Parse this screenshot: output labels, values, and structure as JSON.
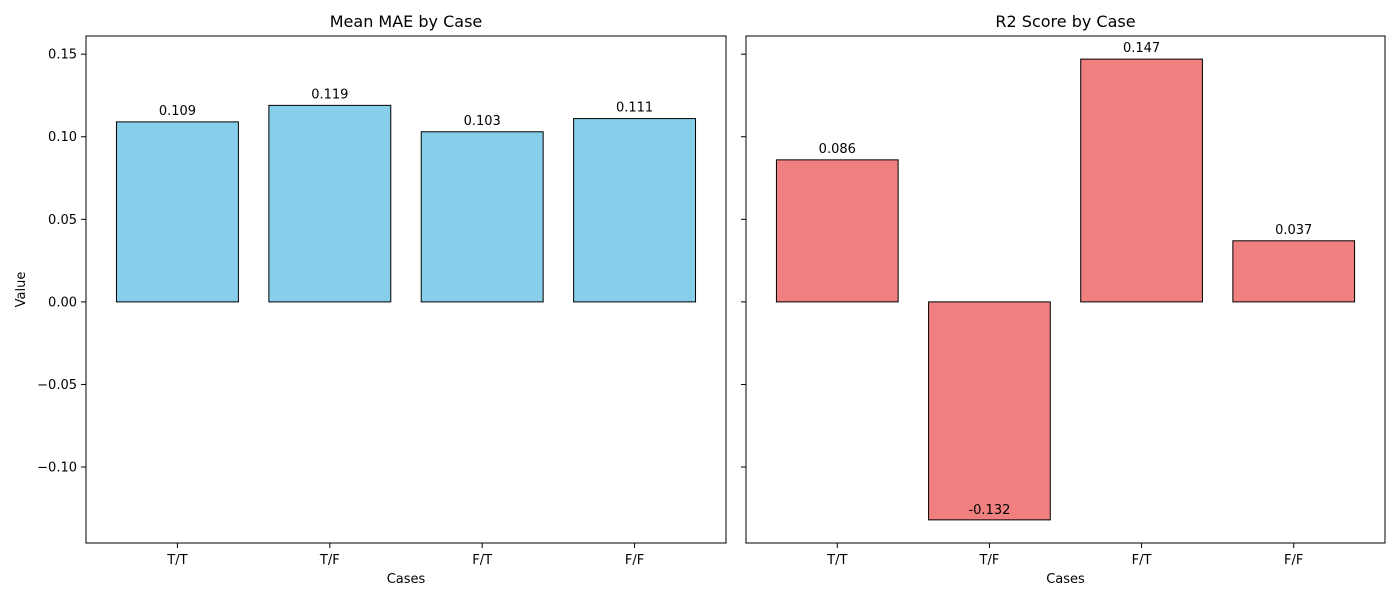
{
  "chart_data": [
    {
      "type": "bar",
      "title": "Mean MAE by Case",
      "xlabel": "Cases",
      "ylabel": "Value",
      "categories": [
        "T/T",
        "T/F",
        "F/T",
        "F/F"
      ],
      "values": [
        0.109,
        0.119,
        0.103,
        0.111
      ],
      "value_labels": [
        "0.109",
        "0.119",
        "0.103",
        "0.111"
      ],
      "ylim": [
        -0.146,
        0.161
      ],
      "yticks": [
        -0.1,
        -0.05,
        0.0,
        0.05,
        0.1,
        0.15
      ],
      "ytick_labels": [
        "−0.10",
        "−0.05",
        "0.00",
        "0.05",
        "0.10",
        "0.15"
      ],
      "color": "#87ceeb",
      "edge_color": "#000000",
      "grid": false
    },
    {
      "type": "bar",
      "title": "R2 Score by Case",
      "xlabel": "Cases",
      "ylabel": "",
      "categories": [
        "T/T",
        "T/F",
        "F/T",
        "F/F"
      ],
      "values": [
        0.086,
        -0.132,
        0.147,
        0.037
      ],
      "value_labels": [
        "0.086",
        "-0.132",
        "0.147",
        "0.037"
      ],
      "ylim": [
        -0.146,
        0.161
      ],
      "yticks": [
        -0.1,
        -0.05,
        0.0,
        0.05,
        0.1,
        0.15
      ],
      "ytick_labels": [],
      "color": "#f08080",
      "edge_color": "#000000",
      "grid": false
    }
  ]
}
